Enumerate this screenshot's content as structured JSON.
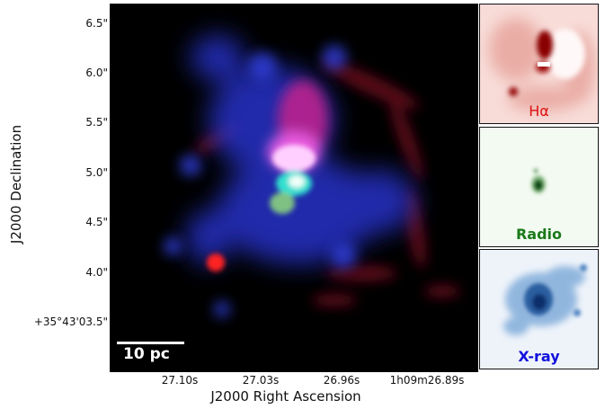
{
  "figure": {
    "y_axis_label": "J2000 Declination",
    "x_axis_label": "J2000 Right Ascension",
    "y_ticks": [
      "6.5\"",
      "6.0\"",
      "5.5\"",
      "5.0\"",
      "4.5\"",
      "4.0\"",
      "+35°43'03.5\""
    ],
    "x_ticks": [
      "27.10s",
      "27.03s",
      "26.96s",
      "1h09m26.89s"
    ],
    "scale_bar": "10 pc"
  },
  "panels": [
    {
      "label": "Hα",
      "color": "#dd1111"
    },
    {
      "label": "Radio",
      "color": "#1a7a1a"
    },
    {
      "label": "X-ray",
      "color": "#1111dd"
    }
  ]
}
